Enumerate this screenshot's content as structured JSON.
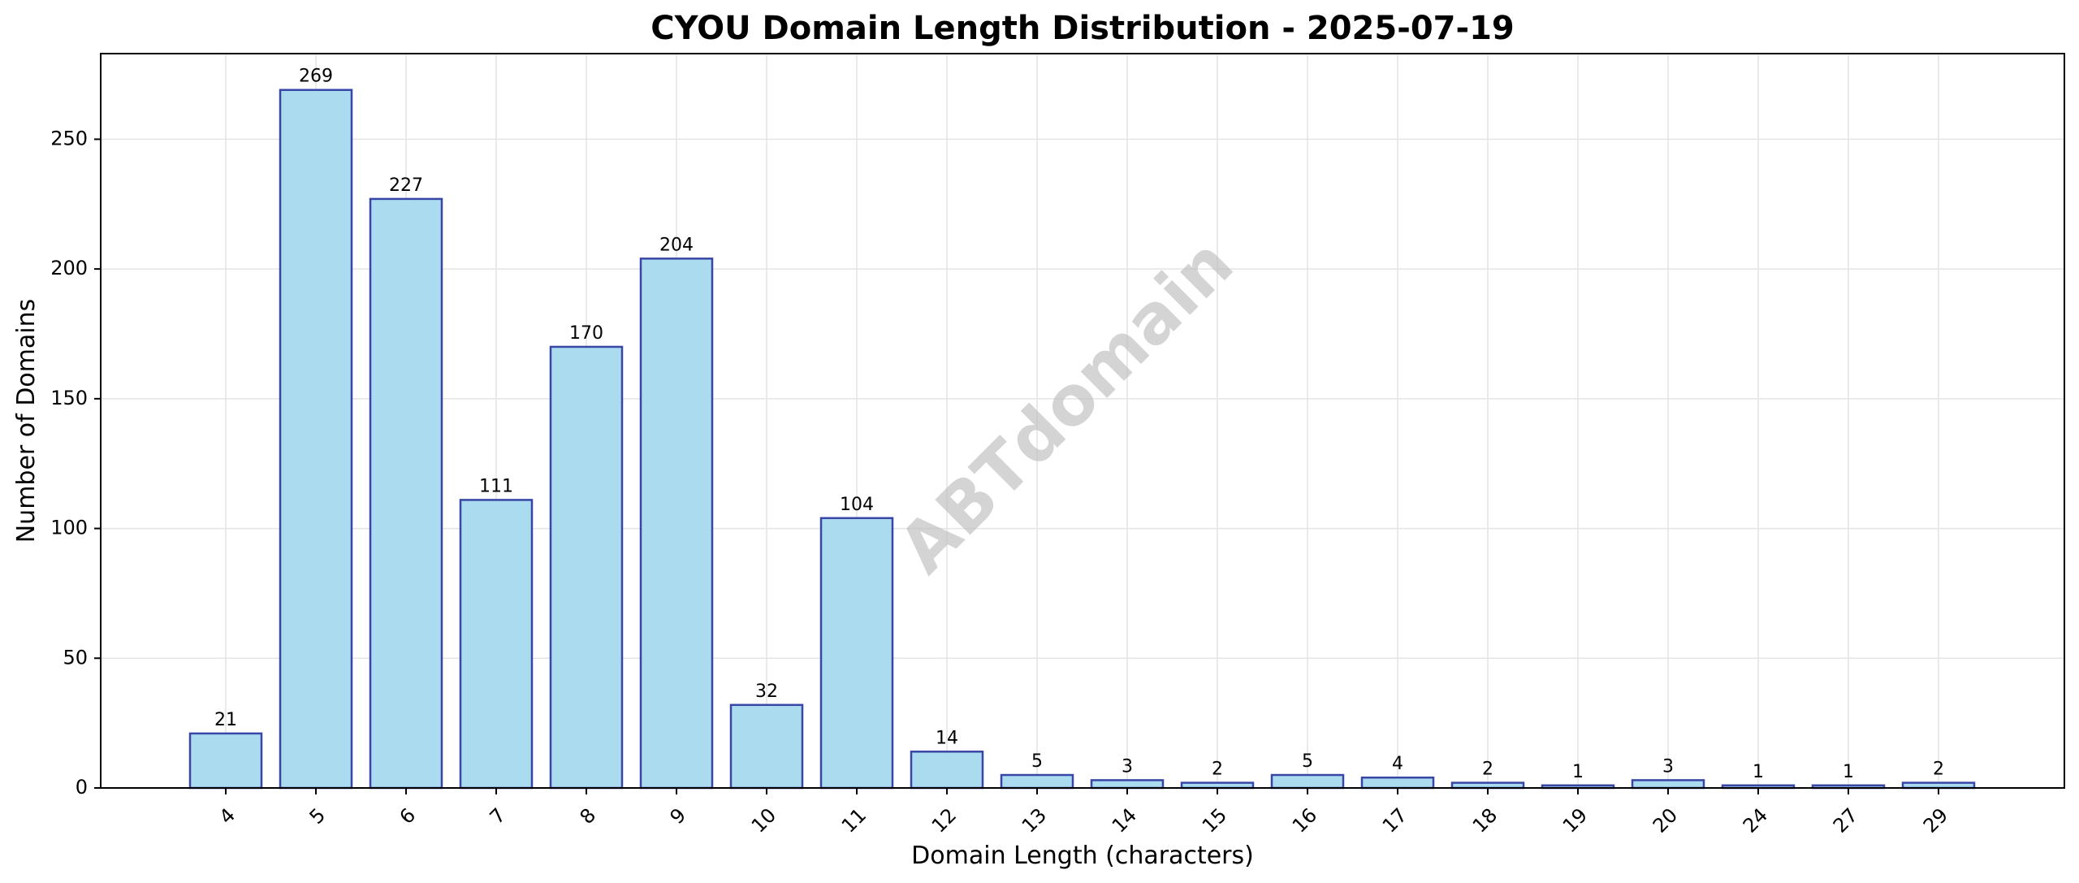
{
  "chart_data": {
    "type": "bar",
    "title": "CYOU Domain Length Distribution - 2025-07-19",
    "xlabel": "Domain Length (characters)",
    "ylabel": "Number of Domains",
    "categories": [
      "4",
      "5",
      "6",
      "7",
      "8",
      "9",
      "10",
      "11",
      "12",
      "13",
      "14",
      "15",
      "16",
      "17",
      "18",
      "19",
      "20",
      "24",
      "27",
      "29"
    ],
    "values": [
      21,
      269,
      227,
      111,
      170,
      204,
      32,
      104,
      14,
      5,
      3,
      2,
      5,
      4,
      2,
      1,
      3,
      1,
      1,
      2
    ],
    "ylim": [
      0,
      283
    ],
    "yticks": [
      0,
      50,
      100,
      150,
      200,
      250
    ],
    "grid": true,
    "watermark": "ABTdomain",
    "colors": {
      "bar_fill": "#abdbef",
      "bar_edge": "#3846a6"
    }
  }
}
